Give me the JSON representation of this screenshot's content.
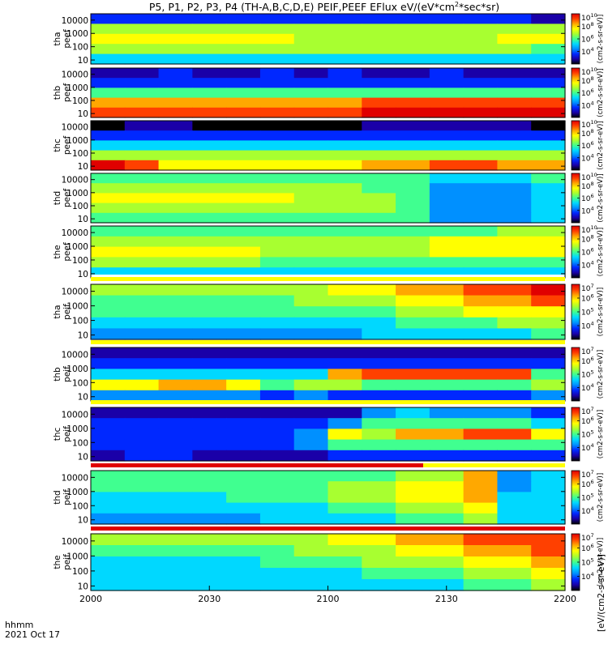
{
  "chart_data": {
    "type": "heatmap",
    "title": "P5, P1, P2, P3, P4 (TH-A,B,C,D,E) PEIF,PEEF EFlux eV/(eV*cm^2*sec*sr)",
    "title_parts": {
      "main": "P5, P1, P2, P3, P4 (TH-A,B,C,D,E) PEIF,PEEF EFlux eV/(eV*cm",
      "sup": "2",
      "tail": "*sec*sr)"
    },
    "x_ticks": [
      "2000",
      "2030",
      "2100",
      "2130",
      "2200"
    ],
    "x_label_top": "hhmm",
    "x_label_bottom": "2021 Oct 17",
    "y_ticks": [
      "10",
      "100",
      "1000",
      "10000"
    ],
    "y_scale": "log",
    "ylim": [
      5,
      30000
    ],
    "cbar_unit_label": "[eV/(cm2-s-sr-eV)]",
    "panels": [
      {
        "line1": "tha",
        "line2": "peef",
        "cbar_ticks": [
          "10",
          "10",
          "10"
        ],
        "cbar_exps": [
          "4",
          "6",
          "8"
        ],
        "cbar_top_exp": "10",
        "cbar_label": "(cm2-s-sr-eV)]",
        "flag_bar": "none",
        "grid": [
          [
            2,
            2,
            2,
            2,
            2,
            2,
            2,
            2,
            2,
            2,
            2,
            2,
            2,
            1
          ],
          [
            6,
            6,
            6,
            6,
            6,
            6,
            6,
            6,
            6,
            6,
            6,
            6,
            6,
            6
          ],
          [
            7,
            7,
            7,
            7,
            7,
            7,
            6,
            6,
            6,
            6,
            6,
            6,
            7,
            7
          ],
          [
            6,
            6,
            6,
            6,
            6,
            6,
            6,
            6,
            6,
            6,
            6,
            6,
            6,
            5
          ],
          [
            4,
            4,
            4,
            4,
            4,
            4,
            4,
            4,
            4,
            4,
            4,
            4,
            4,
            4
          ]
        ]
      },
      {
        "line1": "thb",
        "line2": "peef",
        "cbar_ticks": [
          "10",
          "10",
          "10"
        ],
        "cbar_exps": [
          "4",
          "6",
          "8"
        ],
        "cbar_top_exp": "10",
        "cbar_label": "(cm2-s-sr-eV)]",
        "flag_bar": "none",
        "grid": [
          [
            1,
            1,
            2,
            1,
            1,
            2,
            1,
            2,
            1,
            1,
            2,
            1,
            1,
            1
          ],
          [
            2,
            2,
            2,
            2,
            2,
            2,
            2,
            2,
            2,
            2,
            2,
            2,
            2,
            2
          ],
          [
            5,
            5,
            5,
            5,
            5,
            5,
            5,
            5,
            5,
            5,
            5,
            5,
            5,
            5
          ],
          [
            8,
            8,
            8,
            8,
            8,
            8,
            8,
            8,
            9,
            9,
            9,
            9,
            9,
            9
          ],
          [
            9,
            9,
            9,
            9,
            9,
            9,
            9,
            9,
            10,
            10,
            10,
            10,
            10,
            10
          ]
        ]
      },
      {
        "line1": "thc",
        "line2": "peef",
        "cbar_ticks": [
          "10",
          "10",
          "10"
        ],
        "cbar_exps": [
          "4",
          "6",
          "8"
        ],
        "cbar_top_exp": "10",
        "cbar_label": "(cm2-s-sr-eV)]",
        "flag_bar": "none",
        "grid": [
          [
            0,
            1,
            1,
            0,
            0,
            0,
            0,
            0,
            1,
            1,
            1,
            1,
            1,
            0
          ],
          [
            2,
            2,
            2,
            2,
            2,
            2,
            2,
            2,
            2,
            2,
            2,
            2,
            2,
            2
          ],
          [
            4,
            4,
            4,
            4,
            4,
            4,
            4,
            4,
            4,
            4,
            4,
            4,
            4,
            4
          ],
          [
            6,
            6,
            6,
            6,
            6,
            6,
            6,
            6,
            6,
            6,
            6,
            6,
            6,
            6
          ],
          [
            10,
            9,
            7,
            7,
            7,
            7,
            7,
            7,
            8,
            8,
            9,
            9,
            8,
            8
          ]
        ]
      },
      {
        "line1": "thd",
        "line2": "peef",
        "cbar_ticks": [
          "10",
          "10",
          "10"
        ],
        "cbar_exps": [
          "4",
          "6",
          "8"
        ],
        "cbar_top_exp": "10",
        "cbar_label": "(cm2-s-sr-eV)]",
        "flag_bar": "none",
        "grid": [
          [
            5,
            5,
            5,
            5,
            5,
            5,
            5,
            5,
            5,
            5,
            4,
            4,
            4,
            5
          ],
          [
            6,
            6,
            6,
            6,
            6,
            6,
            6,
            6,
            5,
            5,
            3,
            3,
            3,
            4
          ],
          [
            7,
            7,
            7,
            7,
            7,
            7,
            6,
            6,
            6,
            5,
            3,
            3,
            3,
            4
          ],
          [
            6,
            6,
            6,
            6,
            6,
            6,
            6,
            6,
            6,
            5,
            3,
            3,
            3,
            4
          ],
          [
            5,
            5,
            5,
            5,
            5,
            5,
            5,
            5,
            5,
            5,
            3,
            3,
            3,
            4
          ]
        ]
      },
      {
        "line1": "the",
        "line2": "peef",
        "cbar_ticks": [
          "10",
          "10",
          "10"
        ],
        "cbar_exps": [
          "4",
          "6",
          "8"
        ],
        "cbar_top_exp": "10",
        "cbar_label": "(cm2-s-sr-eV)]",
        "flag_bar": "bottom-white",
        "grid": [
          [
            5,
            5,
            5,
            5,
            5,
            5,
            5,
            5,
            5,
            5,
            5,
            5,
            6,
            6
          ],
          [
            6,
            6,
            6,
            6,
            6,
            6,
            6,
            6,
            6,
            6,
            7,
            7,
            7,
            7
          ],
          [
            7,
            7,
            7,
            7,
            7,
            6,
            6,
            6,
            6,
            6,
            7,
            7,
            7,
            7
          ],
          [
            6,
            6,
            6,
            6,
            6,
            5,
            5,
            5,
            5,
            5,
            5,
            5,
            5,
            5
          ],
          [
            4,
            4,
            4,
            4,
            4,
            4,
            4,
            4,
            4,
            4,
            4,
            4,
            4,
            4
          ]
        ]
      },
      {
        "line1": "tha",
        "line2": "peif",
        "cbar_ticks": [
          "10",
          "10",
          "10"
        ],
        "cbar_exps": [
          "4",
          "5",
          "6"
        ],
        "cbar_top_exp": "7",
        "cbar_label": "(cm2-s-sr-eV)]",
        "flag_bar": "top",
        "grid": [
          [
            6,
            6,
            6,
            6,
            6,
            6,
            6,
            7,
            7,
            8,
            8,
            9,
            9,
            10
          ],
          [
            5,
            5,
            5,
            5,
            5,
            5,
            6,
            6,
            6,
            7,
            7,
            8,
            8,
            9
          ],
          [
            5,
            5,
            5,
            5,
            5,
            5,
            5,
            5,
            5,
            6,
            6,
            7,
            7,
            7
          ],
          [
            4,
            4,
            4,
            4,
            4,
            4,
            4,
            4,
            4,
            5,
            5,
            5,
            6,
            6
          ],
          [
            3,
            3,
            3,
            3,
            3,
            3,
            3,
            3,
            4,
            4,
            4,
            4,
            4,
            5
          ]
        ]
      },
      {
        "line1": "thb",
        "line2": "peif",
        "cbar_ticks": [
          "10",
          "10",
          "10"
        ],
        "cbar_exps": [
          "4",
          "5",
          "6"
        ],
        "cbar_top_exp": "7",
        "cbar_label": "(cm2-s-sr-eV)]",
        "flag_bar": "top",
        "grid": [
          [
            1,
            1,
            1,
            1,
            1,
            1,
            1,
            1,
            1,
            1,
            1,
            1,
            1,
            1
          ],
          [
            2,
            2,
            2,
            2,
            2,
            2,
            2,
            2,
            2,
            2,
            2,
            2,
            2,
            2
          ],
          [
            4,
            4,
            4,
            4,
            4,
            4,
            4,
            8,
            9,
            9,
            9,
            9,
            9,
            5
          ],
          [
            7,
            7,
            8,
            8,
            7,
            5,
            6,
            6,
            5,
            5,
            5,
            5,
            5,
            6
          ],
          [
            3,
            3,
            3,
            3,
            3,
            2,
            3,
            2,
            2,
            2,
            2,
            2,
            2,
            3
          ]
        ]
      },
      {
        "line1": "thc",
        "line2": "peif",
        "cbar_ticks": [
          "10",
          "10",
          "10"
        ],
        "cbar_exps": [
          "4",
          "5",
          "6"
        ],
        "cbar_top_exp": "7",
        "cbar_label": "(cm2-s-sr-eV)]",
        "flag_bar": "top",
        "grid": [
          [
            1,
            1,
            1,
            1,
            1,
            1,
            1,
            1,
            3,
            4,
            3,
            3,
            3,
            2
          ],
          [
            2,
            2,
            2,
            2,
            2,
            2,
            2,
            3,
            5,
            5,
            5,
            5,
            5,
            4
          ],
          [
            2,
            2,
            2,
            2,
            2,
            2,
            3,
            7,
            6,
            8,
            8,
            9,
            9,
            7
          ],
          [
            2,
            2,
            2,
            2,
            2,
            2,
            3,
            5,
            5,
            5,
            5,
            5,
            5,
            5
          ],
          [
            1,
            2,
            2,
            1,
            1,
            1,
            1,
            2,
            2,
            2,
            2,
            2,
            2,
            2
          ]
        ]
      },
      {
        "line1": "thd",
        "line2": "peif",
        "cbar_ticks": [
          "10",
          "10",
          "10"
        ],
        "cbar_exps": [
          "4",
          "5",
          "6"
        ],
        "cbar_top_exp": "7",
        "cbar_label": "(cm2-s-sr-eV)]",
        "flag_bar": "top-red",
        "grid": [
          [
            5,
            5,
            5,
            5,
            5,
            5,
            5,
            5,
            5,
            6,
            6,
            8,
            3,
            4
          ],
          [
            5,
            5,
            5,
            5,
            5,
            5,
            5,
            6,
            6,
            7,
            7,
            8,
            3,
            4
          ],
          [
            4,
            4,
            4,
            4,
            5,
            5,
            5,
            6,
            6,
            7,
            7,
            8,
            4,
            4
          ],
          [
            4,
            4,
            4,
            4,
            4,
            4,
            4,
            5,
            5,
            6,
            6,
            7,
            4,
            4
          ],
          [
            3,
            3,
            3,
            3,
            3,
            4,
            4,
            4,
            4,
            5,
            5,
            6,
            4,
            4
          ]
        ]
      },
      {
        "line1": "the",
        "line2": "peif",
        "cbar_ticks": [
          "10",
          "10",
          "10"
        ],
        "cbar_exps": [
          "4",
          "5",
          "6"
        ],
        "cbar_top_exp": "7",
        "cbar_label": "(cm2-s-sr-eV)]",
        "flag_bar": "top-red-full",
        "grid": [
          [
            6,
            6,
            6,
            6,
            6,
            6,
            6,
            7,
            7,
            8,
            8,
            9,
            9,
            9
          ],
          [
            5,
            5,
            5,
            5,
            5,
            5,
            6,
            6,
            6,
            7,
            7,
            8,
            8,
            9
          ],
          [
            4,
            4,
            4,
            4,
            4,
            5,
            5,
            5,
            6,
            6,
            6,
            7,
            7,
            8
          ],
          [
            4,
            4,
            4,
            4,
            4,
            4,
            4,
            4,
            5,
            5,
            5,
            6,
            6,
            7
          ],
          [
            4,
            4,
            4,
            4,
            4,
            4,
            4,
            4,
            4,
            4,
            4,
            5,
            5,
            6
          ]
        ]
      }
    ]
  }
}
